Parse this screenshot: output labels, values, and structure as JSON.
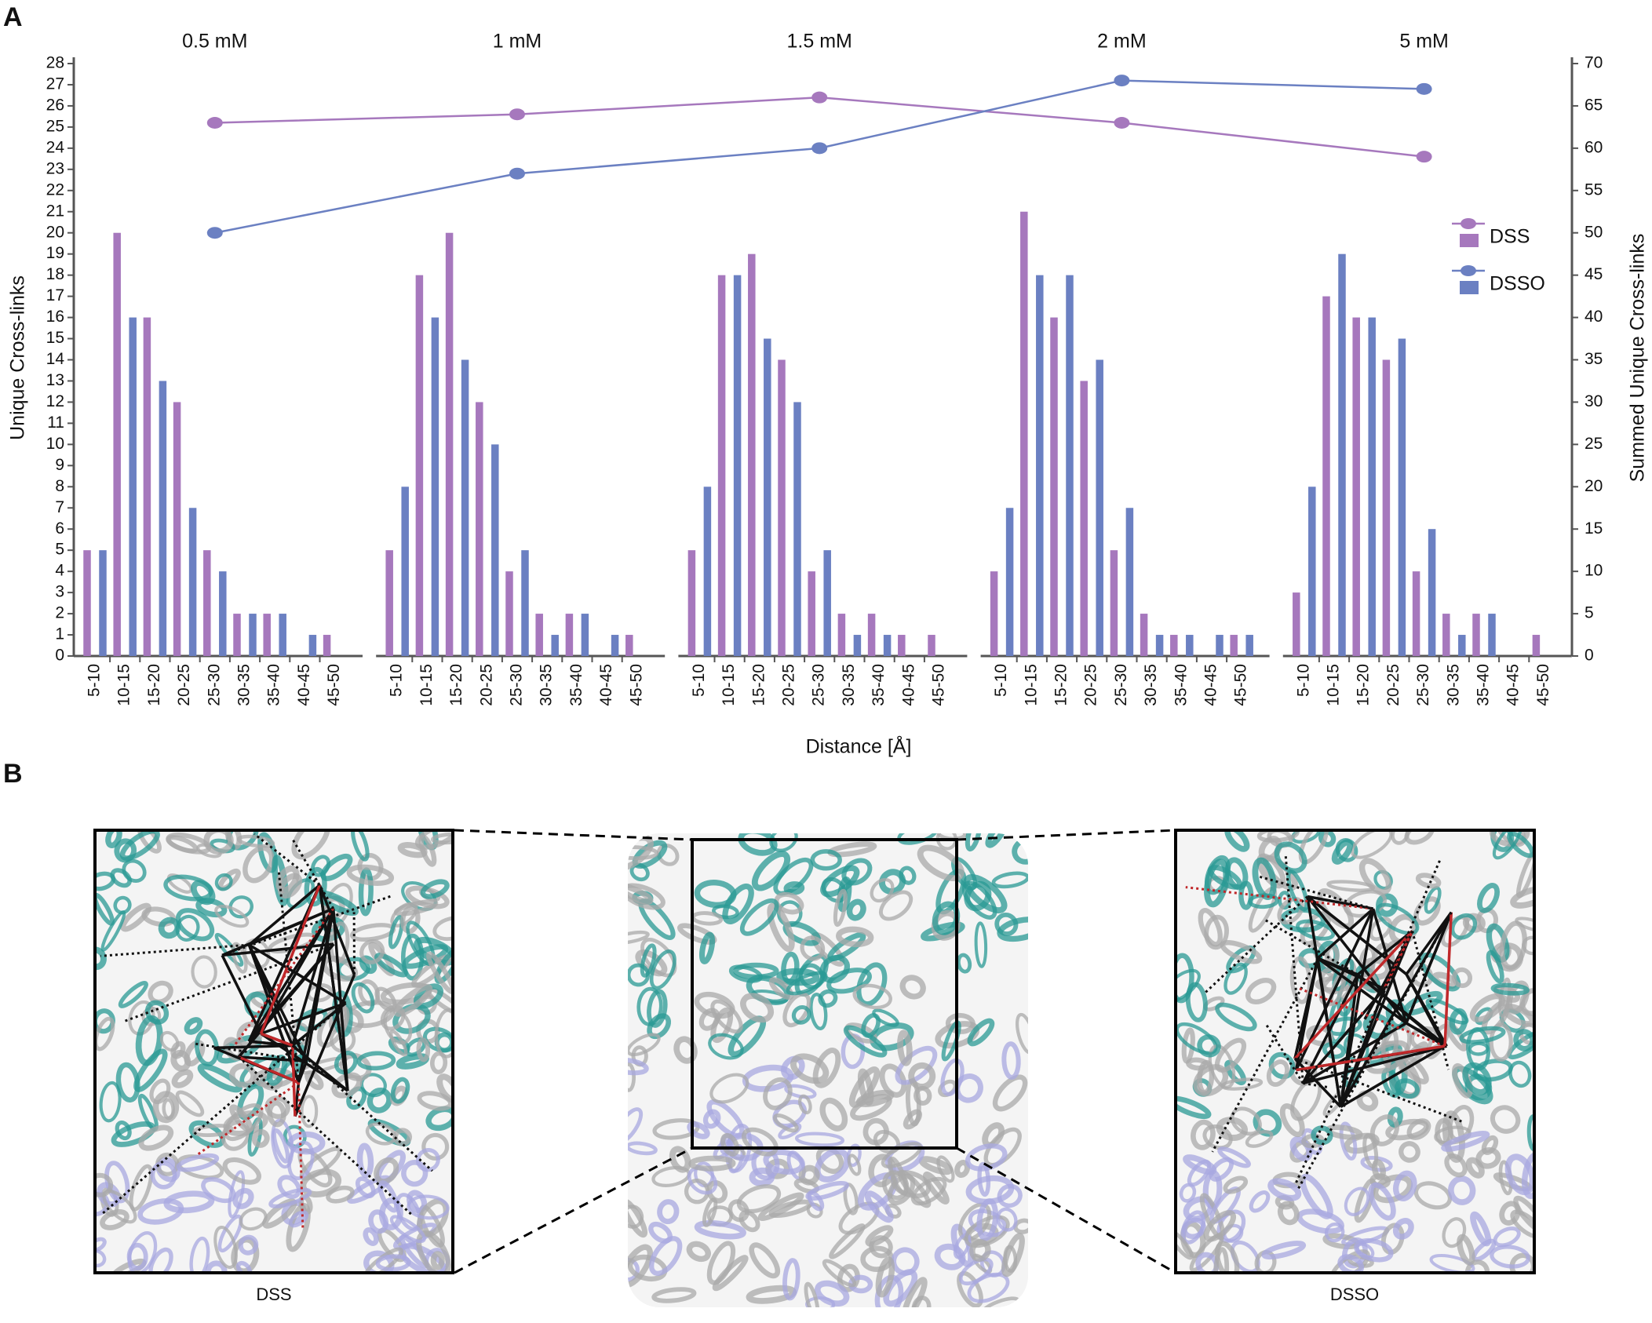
{
  "panel_labels": [
    "A",
    "B"
  ],
  "chart_data": {
    "type": "grouped-bar",
    "x_label": "Distance [Å]",
    "y_label": "Unique Cross-links",
    "y2_label": "Summed Unique Cross-links",
    "groups": [
      "0.5 mM",
      "1 mM",
      "1.5 mM",
      "2 mM",
      "5 mM"
    ],
    "categories": [
      "5-10",
      "10-15",
      "15-20",
      "20-25",
      "25-30",
      "30-35",
      "35-40",
      "40-45",
      "45-50"
    ],
    "ylim": [
      0,
      28
    ],
    "yticks": [
      0,
      1,
      2,
      3,
      4,
      5,
      6,
      7,
      8,
      9,
      10,
      11,
      12,
      13,
      14,
      15,
      16,
      17,
      18,
      19,
      20,
      21,
      22,
      23,
      24,
      25,
      26,
      27,
      28
    ],
    "y2lim": [
      0,
      70
    ],
    "y2ticks": [
      0,
      5,
      10,
      15,
      20,
      25,
      30,
      35,
      40,
      45,
      50,
      55,
      60,
      65,
      70
    ],
    "series": [
      {
        "name": "DSS",
        "color": "#a678bd",
        "values": [
          [
            5,
            20,
            16,
            12,
            5,
            2,
            2,
            0,
            1
          ],
          [
            5,
            18,
            20,
            12,
            4,
            2,
            2,
            0,
            1
          ],
          [
            5,
            18,
            19,
            14,
            4,
            2,
            2,
            1,
            1
          ],
          [
            4,
            21,
            16,
            13,
            5,
            2,
            1,
            0,
            1
          ],
          [
            3,
            17,
            16,
            14,
            4,
            2,
            2,
            0,
            1
          ]
        ],
        "summed": {
          "axis": "y2",
          "values": [
            63,
            64,
            66,
            63,
            59
          ]
        }
      },
      {
        "name": "DSSO",
        "color": "#6b80c2",
        "values": [
          [
            5,
            16,
            13,
            7,
            4,
            2,
            2,
            1,
            0
          ],
          [
            8,
            16,
            14,
            10,
            5,
            1,
            2,
            1,
            0
          ],
          [
            8,
            18,
            15,
            12,
            5,
            1,
            1,
            0,
            0
          ],
          [
            7,
            18,
            18,
            14,
            7,
            1,
            1,
            1,
            1
          ],
          [
            8,
            19,
            16,
            15,
            6,
            1,
            2,
            0,
            0
          ]
        ],
        "summed": {
          "axis": "y2",
          "values": [
            50,
            57,
            60,
            68,
            67
          ]
        }
      }
    ]
  },
  "panel_b": {
    "captions": [
      "DSS",
      "DSSO"
    ]
  }
}
